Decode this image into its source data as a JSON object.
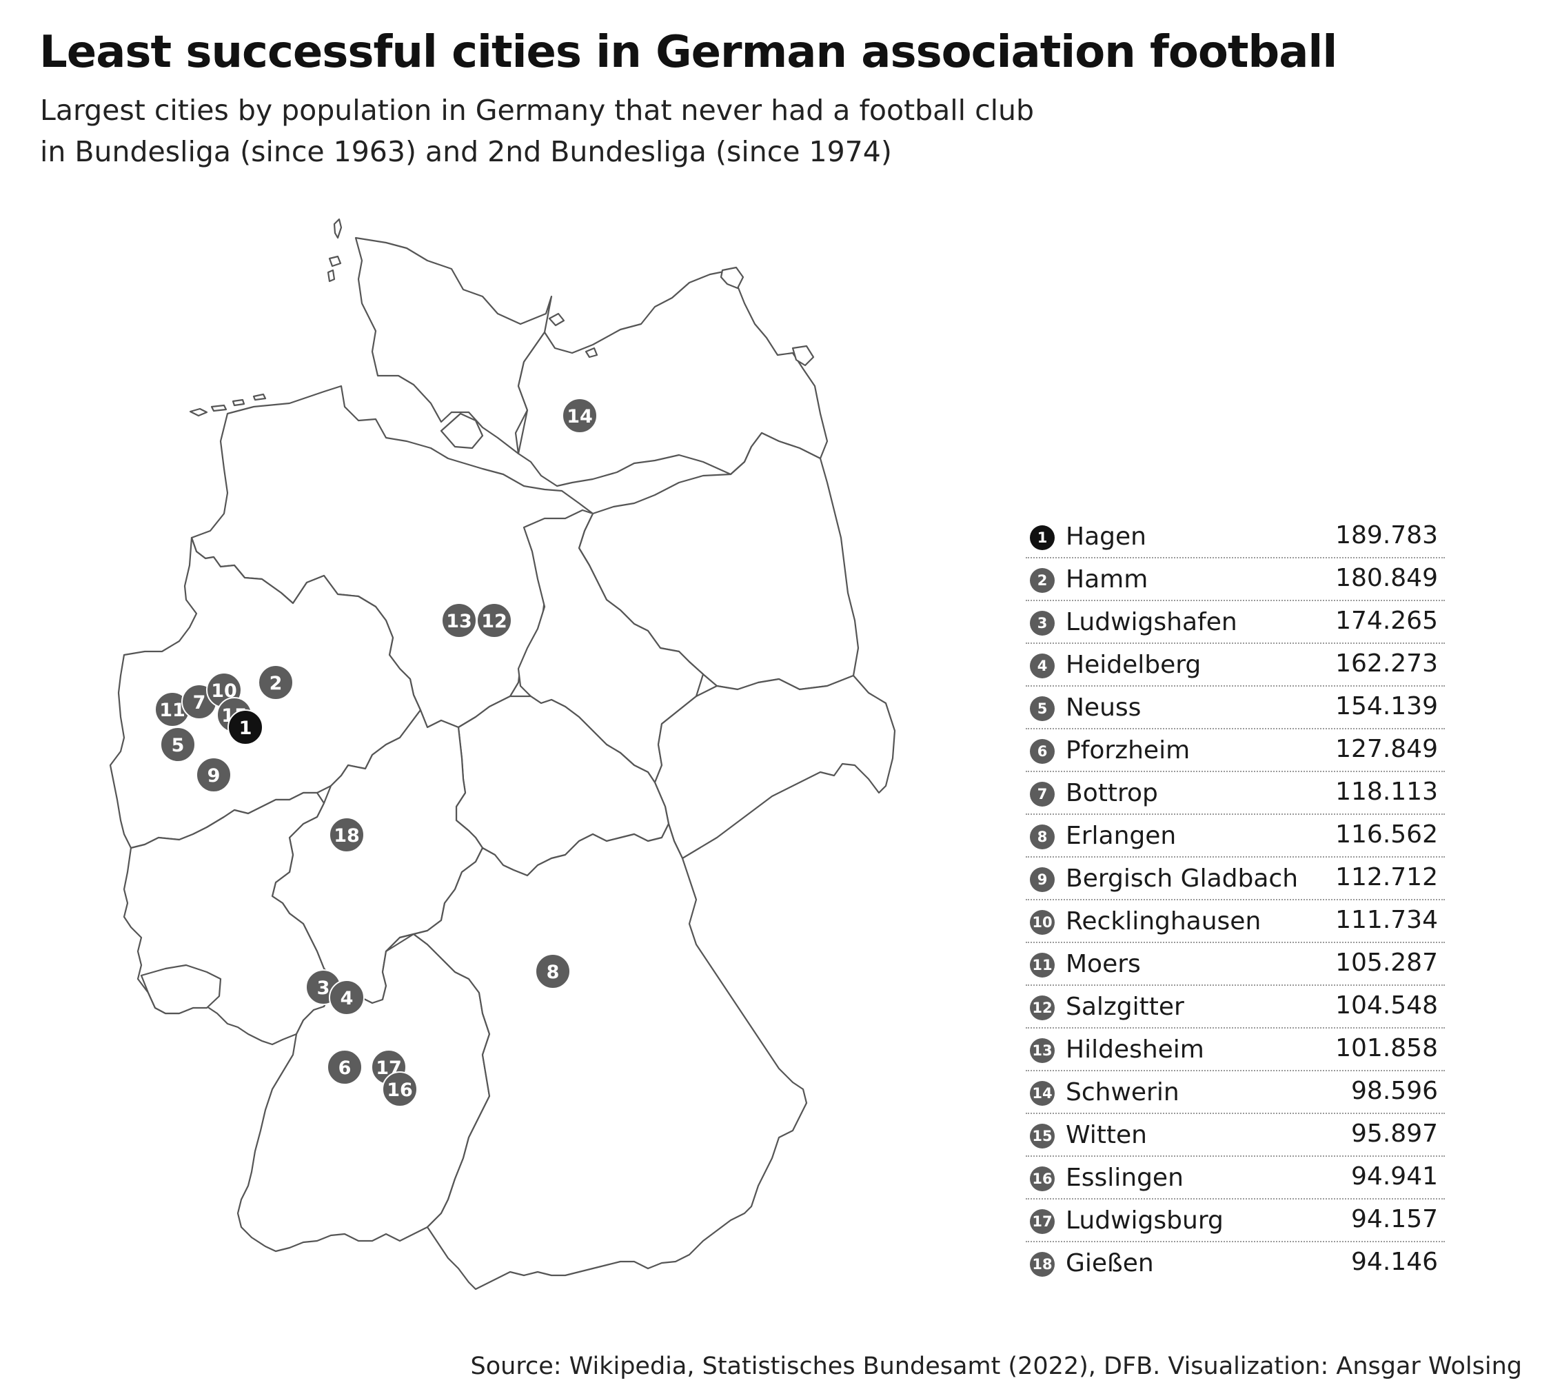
{
  "title": "Least successful cities in German association football",
  "subtitle_line1": "Largest cities by population in Germany that never had a football club",
  "subtitle_line2": "in Bundesliga (since 1963) and 2nd Bundesliga (since 1974)",
  "source": "Source: Wikipedia, Statistisches Bundesamt (2022), DFB. Visualization: Ansgar Wolsing",
  "colors": {
    "rank1": "#111111",
    "marker": "#5c5c5c",
    "state_outline": "#555555",
    "state_fill": "#ffffff"
  },
  "cities": [
    {
      "rank": "1",
      "name": "Hagen",
      "population": "189.783"
    },
    {
      "rank": "2",
      "name": "Hamm",
      "population": "180.849"
    },
    {
      "rank": "3",
      "name": "Ludwigshafen",
      "population": "174.265"
    },
    {
      "rank": "4",
      "name": "Heidelberg",
      "population": "162.273"
    },
    {
      "rank": "5",
      "name": "Neuss",
      "population": "154.139"
    },
    {
      "rank": "6",
      "name": "Pforzheim",
      "population": "127.849"
    },
    {
      "rank": "7",
      "name": "Bottrop",
      "population": "118.113"
    },
    {
      "rank": "8",
      "name": "Erlangen",
      "population": "116.562"
    },
    {
      "rank": "9",
      "name": "Bergisch Gladbach",
      "population": "112.712"
    },
    {
      "rank": "10",
      "name": "Recklinghausen",
      "population": "111.734"
    },
    {
      "rank": "11",
      "name": "Moers",
      "population": "105.287"
    },
    {
      "rank": "12",
      "name": "Salzgitter",
      "population": "104.548"
    },
    {
      "rank": "13",
      "name": "Hildesheim",
      "population": "101.858"
    },
    {
      "rank": "14",
      "name": "Schwerin",
      "population": "98.596"
    },
    {
      "rank": "15",
      "name": "Witten",
      "population": "95.897"
    },
    {
      "rank": "16",
      "name": "Esslingen",
      "population": "94.941"
    },
    {
      "rank": "17",
      "name": "Ludwigsburg",
      "population": "94.157"
    },
    {
      "rank": "18",
      "name": "Gießen",
      "population": "94.146"
    }
  ]
}
